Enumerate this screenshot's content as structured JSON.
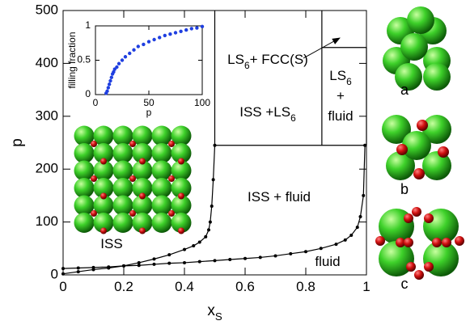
{
  "chart_data": [
    {
      "type": "line",
      "xlabel": [
        {
          "text": "x"
        },
        {
          "text": "S",
          "sub": true
        }
      ],
      "ylabel": "p",
      "xlim": [
        0,
        1
      ],
      "ylim": [
        0,
        500
      ],
      "xticks": [
        0,
        0.2,
        0.4,
        0.6,
        0.8,
        1
      ],
      "yticks": [
        0,
        100,
        200,
        300,
        400,
        500
      ],
      "color": "#000000",
      "lines": [
        {
          "markers": true,
          "x": [
            0,
            0.05,
            0.1,
            0.15,
            0.2,
            0.25,
            0.3,
            0.35,
            0.4,
            0.45,
            0.5,
            0.55,
            0.6,
            0.65,
            0.7,
            0.75,
            0.8,
            0.85,
            0.9,
            0.93,
            0.95,
            0.97,
            0.98,
            0.99,
            0.995
          ],
          "y": [
            12,
            13,
            14,
            15,
            17,
            18,
            20,
            22,
            23,
            25,
            27,
            29,
            31,
            33,
            36,
            40,
            44,
            50,
            58,
            66,
            75,
            90,
            110,
            150,
            245
          ]
        },
        {
          "markers": true,
          "x": [
            0,
            0.05,
            0.1,
            0.15,
            0.2,
            0.25,
            0.3,
            0.35,
            0.4,
            0.43,
            0.45,
            0.47,
            0.48,
            0.485,
            0.49,
            0.495,
            0.5
          ],
          "y": [
            2,
            6,
            10,
            13,
            17,
            23,
            30,
            38,
            48,
            55,
            62,
            72,
            85,
            100,
            130,
            180,
            245
          ]
        },
        {
          "markers": false,
          "x": [
            0.5,
            1
          ],
          "y": [
            245,
            245
          ]
        },
        {
          "markers": false,
          "x": [
            0.5,
            0.5
          ],
          "y": [
            245,
            500
          ]
        },
        {
          "markers": false,
          "x": [
            0.853,
            0.853
          ],
          "y": [
            245,
            500
          ]
        },
        {
          "markers": false,
          "x": [
            0.853,
            1
          ],
          "y": [
            430,
            430
          ]
        },
        {
          "markers": false,
          "x": [
            1,
            1
          ],
          "y": [
            245,
            430
          ]
        }
      ],
      "annotations": [
        [
          {
            "text": "LS"
          },
          {
            "text": "6",
            "sub": true
          },
          {
            "text": "+ FCC(S)"
          }
        ],
        [
          {
            "text": "ISS +LS"
          },
          {
            "text": "6",
            "sub": true
          }
        ],
        [
          {
            "text": "LS"
          },
          {
            "text": "6",
            "sub": true
          }
        ],
        [
          {
            "text": "+"
          }
        ],
        [
          {
            "text": "fluid"
          }
        ],
        [
          {
            "text": "ISS + fluid"
          }
        ],
        [
          {
            "text": "ISS"
          }
        ],
        [
          {
            "text": "fluid"
          }
        ]
      ]
    },
    {
      "type": "scatter",
      "xlabel": "p",
      "ylabel": "filling fraction",
      "xlim": [
        0,
        100
      ],
      "ylim": [
        0,
        1
      ],
      "xticks": [
        0,
        50,
        100
      ],
      "yticks": [
        0,
        0.5,
        1
      ],
      "color": "#1f3fe0",
      "x": [
        10,
        11,
        12,
        13,
        14,
        15,
        16,
        17,
        18,
        20,
        22,
        25,
        28,
        32,
        36,
        40,
        45,
        50,
        55,
        60,
        65,
        70,
        75,
        80,
        85,
        90,
        95,
        100
      ],
      "y": [
        0.02,
        0.05,
        0.1,
        0.15,
        0.2,
        0.25,
        0.3,
        0.33,
        0.37,
        0.4,
        0.45,
        0.5,
        0.55,
        0.6,
        0.65,
        0.7,
        0.73,
        0.77,
        0.8,
        0.83,
        0.86,
        0.88,
        0.9,
        0.92,
        0.94,
        0.96,
        0.97,
        0.99
      ]
    }
  ],
  "images": {
    "labels": [
      "a",
      "b",
      "c"
    ]
  }
}
